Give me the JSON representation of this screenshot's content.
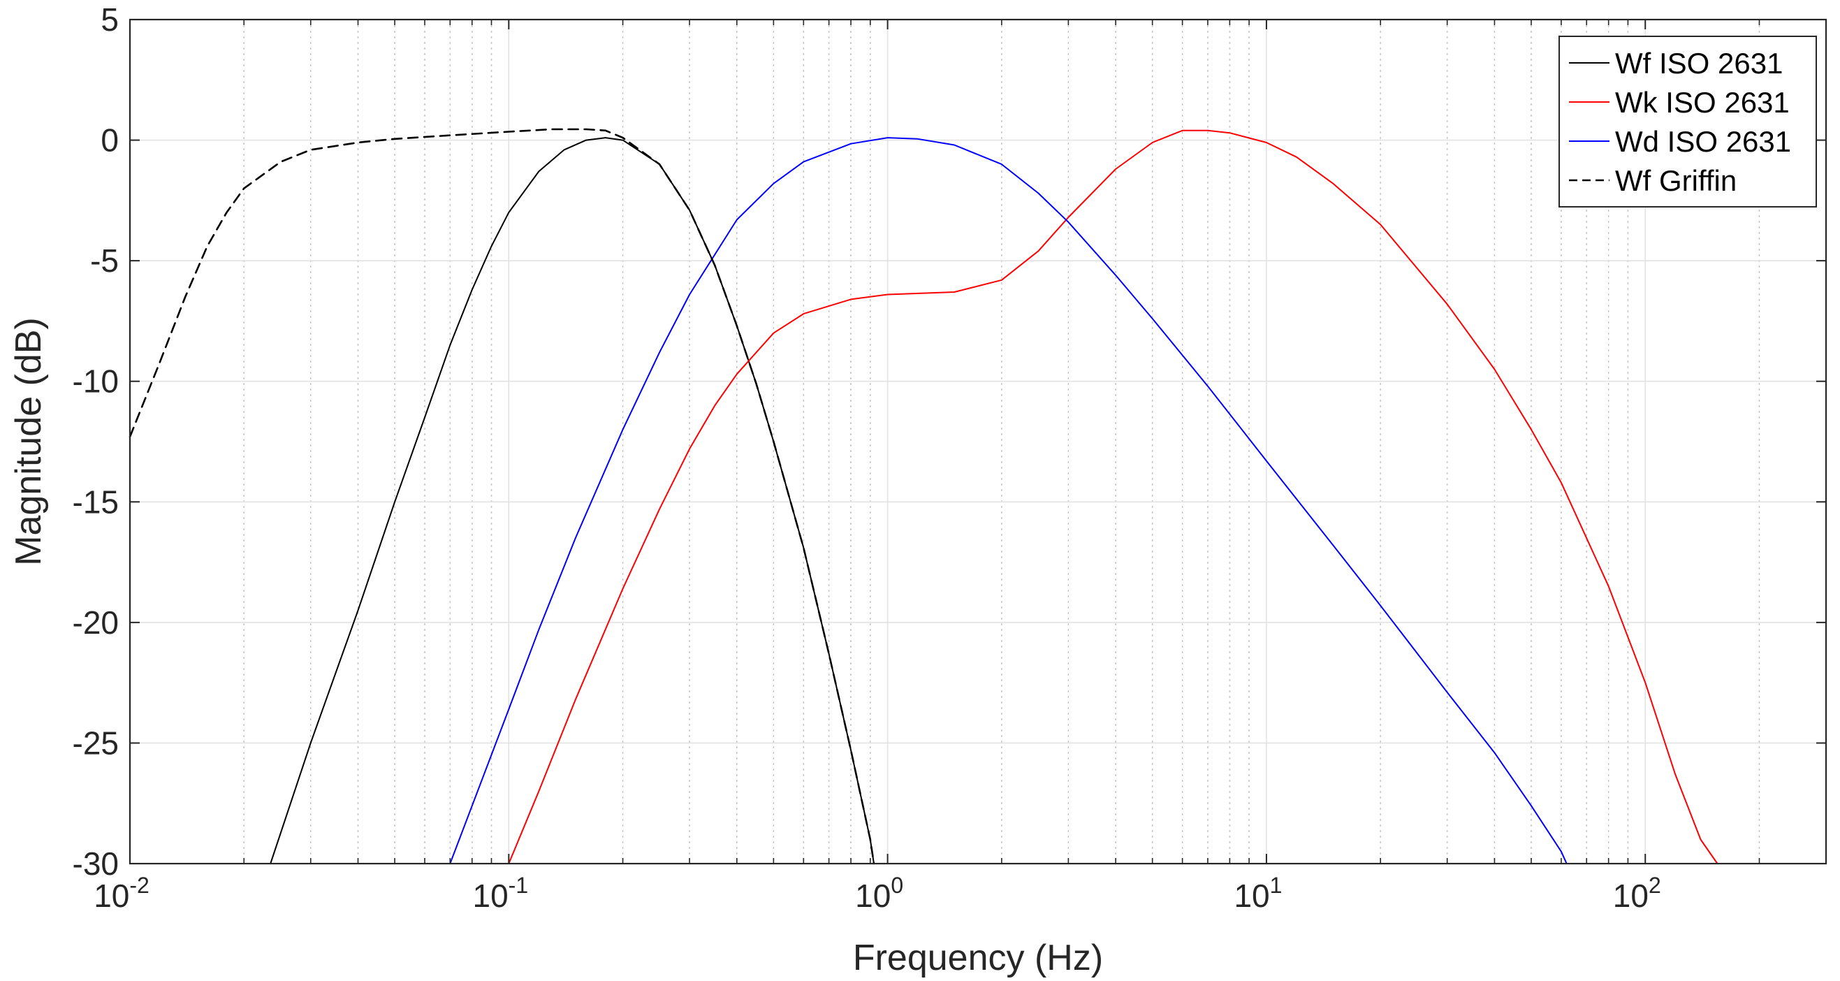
{
  "chart_data": {
    "type": "line",
    "xscale": "log",
    "xlabel": "Frequency (Hz)",
    "ylabel": "Magnitude (dB)",
    "xlim": [
      0.01,
      300
    ],
    "ylim": [
      -30,
      5
    ],
    "y_ticks": [
      -30,
      -25,
      -20,
      -15,
      -10,
      -5,
      0,
      5
    ],
    "y_tick_labels": [
      "-30",
      "-25",
      "-20",
      "-15",
      "-10",
      "-5",
      "0",
      "5"
    ],
    "x_ticks": [
      {
        "value": 0.01,
        "base": "10",
        "exp": "-2"
      },
      {
        "value": 0.1,
        "base": "10",
        "exp": "-1"
      },
      {
        "value": 1,
        "base": "10",
        "exp": "0"
      },
      {
        "value": 10,
        "base": "10",
        "exp": "1"
      },
      {
        "value": 100,
        "base": "10",
        "exp": "2"
      }
    ],
    "grid": true,
    "legend_position": "top-right",
    "series": [
      {
        "name": "Wf ISO 2631",
        "color": "#000000",
        "style": "solid",
        "points": [
          [
            0.0235,
            -30
          ],
          [
            0.03,
            -25
          ],
          [
            0.04,
            -19.5
          ],
          [
            0.05,
            -15
          ],
          [
            0.06,
            -11.5
          ],
          [
            0.07,
            -8.5
          ],
          [
            0.08,
            -6.2
          ],
          [
            0.09,
            -4.4
          ],
          [
            0.1,
            -3
          ],
          [
            0.12,
            -1.3
          ],
          [
            0.14,
            -0.4
          ],
          [
            0.16,
            0
          ],
          [
            0.18,
            0.1
          ],
          [
            0.2,
            0
          ],
          [
            0.25,
            -1
          ],
          [
            0.3,
            -2.9
          ],
          [
            0.35,
            -5.2
          ],
          [
            0.4,
            -7.7
          ],
          [
            0.45,
            -10.1
          ],
          [
            0.5,
            -12.5
          ],
          [
            0.6,
            -16.9
          ],
          [
            0.7,
            -21.3
          ],
          [
            0.8,
            -25.3
          ],
          [
            0.9,
            -29
          ],
          [
            0.92,
            -30
          ]
        ]
      },
      {
        "name": "Wk ISO 2631",
        "color": "#ff0000",
        "style": "solid",
        "points": [
          [
            0.1,
            -30
          ],
          [
            0.12,
            -27
          ],
          [
            0.15,
            -23.2
          ],
          [
            0.2,
            -18.6
          ],
          [
            0.25,
            -15.3
          ],
          [
            0.3,
            -12.8
          ],
          [
            0.35,
            -11
          ],
          [
            0.4,
            -9.7
          ],
          [
            0.5,
            -8
          ],
          [
            0.6,
            -7.2
          ],
          [
            0.8,
            -6.6
          ],
          [
            1,
            -6.4
          ],
          [
            1.5,
            -6.3
          ],
          [
            2,
            -5.8
          ],
          [
            2.5,
            -4.6
          ],
          [
            3,
            -3.2
          ],
          [
            4,
            -1.2
          ],
          [
            5,
            -0.1
          ],
          [
            6,
            0.4
          ],
          [
            7,
            0.4
          ],
          [
            8,
            0.3
          ],
          [
            10,
            -0.1
          ],
          [
            12,
            -0.7
          ],
          [
            15,
            -1.8
          ],
          [
            20,
            -3.5
          ],
          [
            30,
            -6.8
          ],
          [
            40,
            -9.5
          ],
          [
            50,
            -12
          ],
          [
            60,
            -14.2
          ],
          [
            80,
            -18.5
          ],
          [
            100,
            -22.5
          ],
          [
            120,
            -26.3
          ],
          [
            140,
            -29
          ],
          [
            155,
            -30
          ]
        ]
      },
      {
        "name": "Wd ISO 2631",
        "color": "#0000ff",
        "style": "solid",
        "points": [
          [
            0.07,
            -30
          ],
          [
            0.08,
            -27.6
          ],
          [
            0.1,
            -23.6
          ],
          [
            0.12,
            -20.3
          ],
          [
            0.15,
            -16.5
          ],
          [
            0.2,
            -12
          ],
          [
            0.25,
            -8.8
          ],
          [
            0.3,
            -6.4
          ],
          [
            0.4,
            -3.3
          ],
          [
            0.5,
            -1.8
          ],
          [
            0.6,
            -0.9
          ],
          [
            0.8,
            -0.15
          ],
          [
            1,
            0.1
          ],
          [
            1.2,
            0.05
          ],
          [
            1.5,
            -0.2
          ],
          [
            2,
            -1
          ],
          [
            2.5,
            -2.2
          ],
          [
            3,
            -3.4
          ],
          [
            4,
            -5.6
          ],
          [
            5,
            -7.4
          ],
          [
            7,
            -10.2
          ],
          [
            10,
            -13.3
          ],
          [
            15,
            -16.8
          ],
          [
            20,
            -19.3
          ],
          [
            30,
            -22.9
          ],
          [
            40,
            -25.4
          ],
          [
            50,
            -27.6
          ],
          [
            60,
            -29.5
          ],
          [
            62,
            -30
          ]
        ]
      },
      {
        "name": "Wf Griffin",
        "color": "#000000",
        "style": "dashed",
        "points": [
          [
            0.01,
            -12.3
          ],
          [
            0.012,
            -9.2
          ],
          [
            0.014,
            -6.5
          ],
          [
            0.016,
            -4.4
          ],
          [
            0.018,
            -3
          ],
          [
            0.02,
            -2
          ],
          [
            0.025,
            -0.9
          ],
          [
            0.03,
            -0.4
          ],
          [
            0.04,
            -0.1
          ],
          [
            0.05,
            0.05
          ],
          [
            0.07,
            0.2
          ],
          [
            0.1,
            0.35
          ],
          [
            0.13,
            0.45
          ],
          [
            0.16,
            0.45
          ],
          [
            0.18,
            0.4
          ],
          [
            0.2,
            0.1
          ],
          [
            0.25,
            -1
          ],
          [
            0.3,
            -2.9
          ],
          [
            0.35,
            -5.2
          ],
          [
            0.4,
            -7.7
          ],
          [
            0.45,
            -10.1
          ],
          [
            0.5,
            -12.5
          ],
          [
            0.6,
            -16.9
          ],
          [
            0.7,
            -21.3
          ],
          [
            0.8,
            -25.3
          ],
          [
            0.9,
            -29
          ],
          [
            0.92,
            -30
          ]
        ]
      }
    ]
  }
}
